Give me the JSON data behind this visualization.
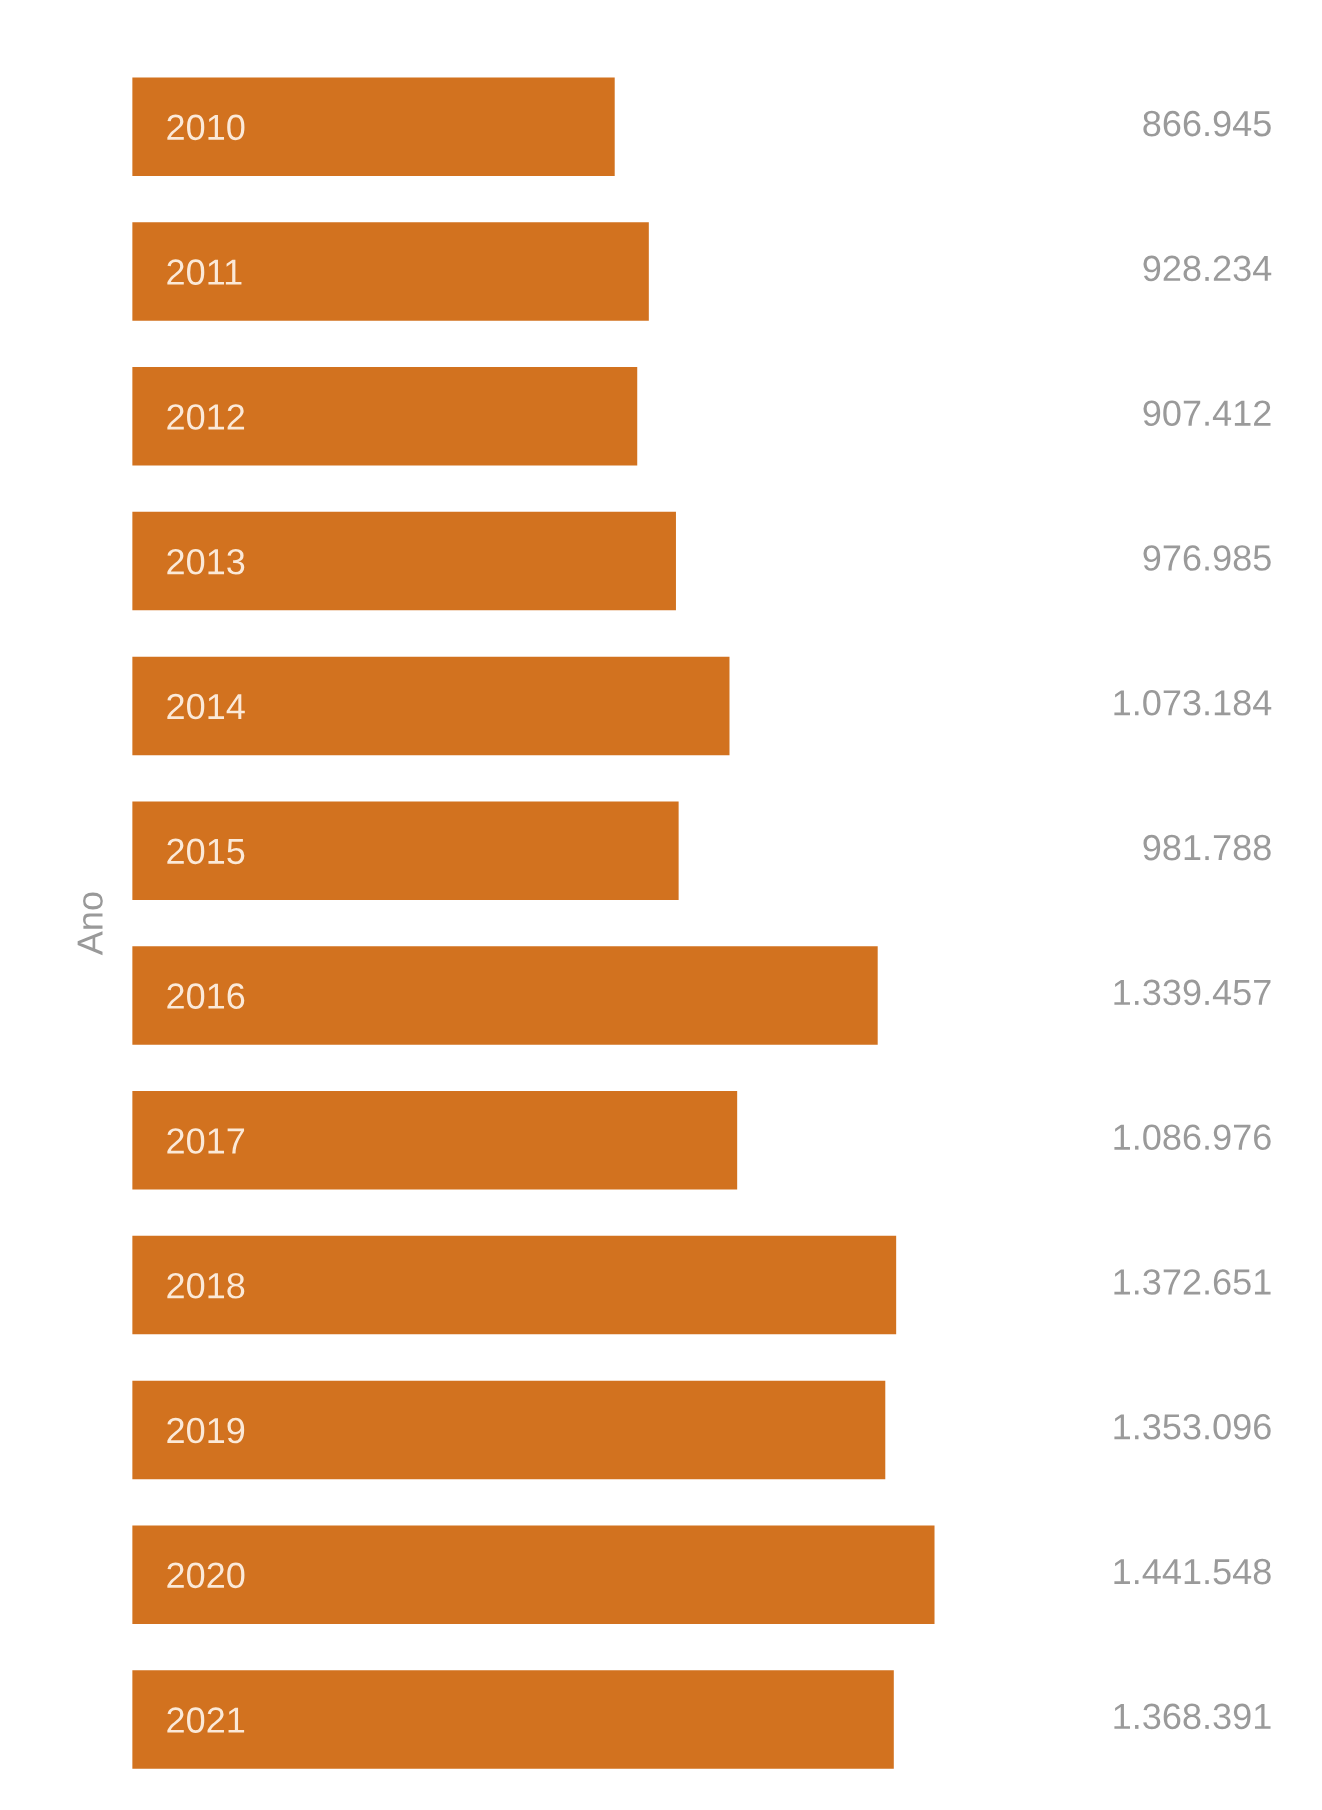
{
  "chart_data": {
    "type": "bar",
    "orientation": "horizontal",
    "ylabel": "Ano",
    "categories": [
      "2010",
      "2011",
      "2012",
      "2013",
      "2014",
      "2015",
      "2016",
      "2017",
      "2018",
      "2019",
      "2020",
      "2021"
    ],
    "values": [
      866945,
      928234,
      907412,
      976985,
      1073184,
      981788,
      1339457,
      1086976,
      1372651,
      1353096,
      1441548,
      1368391
    ],
    "value_labels": [
      "866.945",
      "928.234",
      "907.412",
      "976.985",
      "1.073.184",
      "981.788",
      "1.339.457",
      "1.086.976",
      "1.372.651",
      "1.353.096",
      "1.441.548",
      "1.368.391"
    ],
    "color": "#d2721f",
    "grid": false,
    "legend": false
  }
}
